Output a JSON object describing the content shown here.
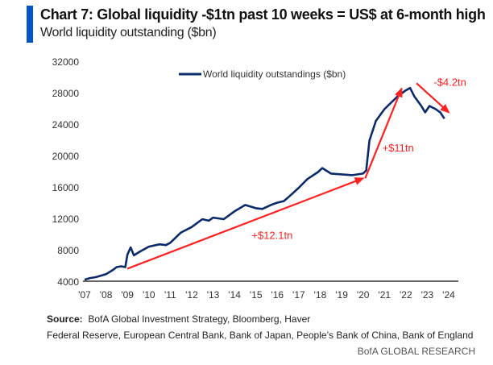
{
  "header": {
    "title": "Chart 7: Global liquidity -$1tn past 10 weeks = US$ at 6-month high",
    "subtitle": "World liquidity outstanding ($bn)"
  },
  "footer": {
    "source_label": "Source:",
    "source_text": "BofA Global Investment Strategy, Bloomberg, Haver",
    "source_line2": "Federal Reserve, European Central Bank, Bank of Japan, People’s Bank of China, Bank of England",
    "brand": "BofA GLOBAL RESEARCH"
  },
  "colors": {
    "accent_bar": "#0055c8",
    "series": "#0b2a6b",
    "annotation": "#ff2020",
    "axis": "#333333"
  },
  "chart_data": {
    "type": "line",
    "title": "Chart 7: Global liquidity -$1tn past 10 weeks = US$ at 6-month high",
    "subtitle": "World liquidity outstanding ($bn)",
    "xlabel": "",
    "ylabel": "",
    "ylim": [
      4000,
      32000
    ],
    "xlim": [
      2007,
      2024
    ],
    "yticks": [
      4000,
      8000,
      12000,
      16000,
      20000,
      24000,
      28000,
      32000
    ],
    "ytick_labels": [
      "4000",
      "8000",
      "12000",
      "16000",
      "20000",
      "24000",
      "28000",
      "32000"
    ],
    "xticks": [
      2007,
      2008,
      2009,
      2010,
      2011,
      2012,
      2013,
      2014,
      2015,
      2016,
      2017,
      2018,
      2019,
      2020,
      2021,
      2022,
      2023,
      2024
    ],
    "xtick_labels": [
      "'07",
      "'08",
      "'09",
      "'10",
      "'11",
      "'12",
      "'13",
      "'14",
      "'15",
      "'16",
      "'17",
      "'18",
      "'19",
      "'20",
      "'21",
      "'22",
      "'23",
      "'24"
    ],
    "grid": false,
    "legend": {
      "position": "top-center",
      "entries": [
        "World liquidity outstandings ($bn)"
      ]
    },
    "series": [
      {
        "name": "World liquidity outstandings ($bn)",
        "x": [
          2007.0,
          2007.25,
          2007.5,
          2007.75,
          2008.0,
          2008.3,
          2008.5,
          2008.7,
          2008.9,
          2009.0,
          2009.15,
          2009.3,
          2009.6,
          2010.0,
          2010.5,
          2010.8,
          2011.0,
          2011.5,
          2012.0,
          2012.5,
          2012.8,
          2013.0,
          2013.5,
          2014.0,
          2014.5,
          2015.0,
          2015.3,
          2015.7,
          2016.0,
          2016.3,
          2016.6,
          2017.0,
          2017.4,
          2017.9,
          2018.1,
          2018.5,
          2019.0,
          2019.5,
          2020.0,
          2020.15,
          2020.3,
          2020.6,
          2021.0,
          2021.3,
          2021.6,
          2022.0,
          2022.2,
          2022.4,
          2022.7,
          2022.9,
          2023.1,
          2023.4,
          2023.6,
          2023.8
        ],
        "values": [
          4300,
          4500,
          4600,
          4800,
          5000,
          5500,
          5900,
          6000,
          5900,
          7500,
          8400,
          7400,
          7900,
          8500,
          8800,
          8700,
          9000,
          10300,
          11000,
          12000,
          11800,
          12200,
          12000,
          13000,
          13800,
          13400,
          13300,
          13800,
          14100,
          14300,
          15000,
          16000,
          17100,
          18000,
          18500,
          17800,
          17700,
          17600,
          17800,
          18200,
          22000,
          24500,
          26000,
          26800,
          27600,
          28400,
          28700,
          27600,
          26500,
          25600,
          26400,
          26000,
          25600,
          24800
        ]
      }
    ],
    "annotations": [
      {
        "text": "+$12.1tn",
        "arrow_from": [
          2009.0,
          5700
        ],
        "arrow_to": [
          2020.0,
          17200
        ],
        "label_at": [
          2014.8,
          9500
        ]
      },
      {
        "text": "+$11tn",
        "arrow_from": [
          2020.1,
          17200
        ],
        "arrow_to": [
          2021.8,
          28600
        ],
        "label_at": [
          2020.9,
          20600
        ]
      },
      {
        "text": "-$4.2tn",
        "arrow_from": [
          2022.5,
          29300
        ],
        "arrow_to": [
          2024.0,
          25600
        ],
        "label_at": [
          2023.3,
          29000
        ]
      }
    ]
  }
}
